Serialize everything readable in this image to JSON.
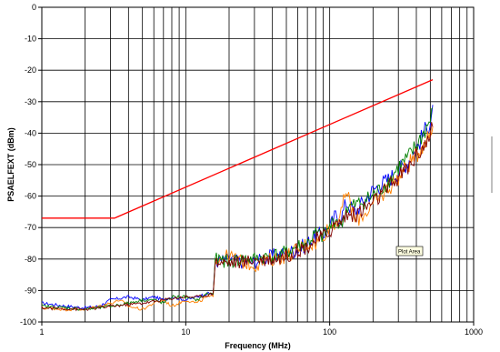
{
  "chart_data": {
    "type": "line",
    "xlabel": "Frequency (MHz)",
    "ylabel": "PSAELFEXT (dBm)",
    "xscale": "log",
    "xlim": [
      1,
      1000
    ],
    "ylim": [
      -100,
      0
    ],
    "x_tick_labels": [
      "1",
      "10",
      "100",
      "1000"
    ],
    "y_tick_labels": [
      "0",
      "-10",
      "-20",
      "-30",
      "-40",
      "-50",
      "-60",
      "-70",
      "-80",
      "-90",
      "-100"
    ],
    "grid": true,
    "legend": "none",
    "tooltip": "Plot Area",
    "limit_line": {
      "color": "#ff0000",
      "x": [
        1,
        3.2,
        520
      ],
      "y": [
        -67,
        -67,
        -23
      ]
    },
    "series": [
      {
        "color": "#0000ff",
        "x": [
          1,
          1.5,
          2,
          2.5,
          3,
          4,
          5,
          6,
          7,
          8,
          10,
          12,
          14,
          15.5,
          16,
          20,
          25,
          30,
          40,
          50,
          60,
          70,
          80,
          90,
          100,
          110,
          120,
          130,
          150,
          200,
          250,
          300,
          350,
          400,
          450,
          500,
          520
        ],
        "y": [
          -94,
          -95,
          -95.5,
          -95,
          -93,
          -92,
          -93,
          -92,
          -93,
          -92,
          -93,
          -92,
          -91,
          -91,
          -81,
          -80,
          -81,
          -81,
          -79,
          -78,
          -77,
          -75,
          -73,
          -72,
          -70,
          -66,
          -67,
          -62,
          -65,
          -58,
          -55,
          -52,
          -49,
          -45,
          -40,
          -36,
          -31
        ]
      },
      {
        "color": "#ff8000",
        "x": [
          1,
          1.5,
          2,
          2.5,
          3,
          3.5,
          4,
          5,
          6,
          7,
          8,
          10,
          12,
          14,
          15.5,
          16,
          20,
          25,
          30,
          40,
          50,
          60,
          70,
          80,
          90,
          100,
          110,
          120,
          130,
          150,
          200,
          250,
          300,
          350,
          400,
          450,
          500,
          520
        ],
        "y": [
          -95.5,
          -96,
          -96,
          -95,
          -94,
          -93,
          -95,
          -96,
          -94,
          -93,
          -95,
          -93,
          -94,
          -92,
          -92,
          -80,
          -79,
          -81,
          -82,
          -80,
          -79,
          -77,
          -75,
          -75,
          -72,
          -70,
          -68,
          -66,
          -58,
          -68,
          -63,
          -58,
          -54,
          -50,
          -47,
          -43,
          -40,
          -38
        ]
      },
      {
        "color": "#008000",
        "x": [
          1,
          1.5,
          2,
          2.5,
          3,
          4,
          5,
          6,
          7,
          8,
          10,
          12,
          14,
          15.5,
          16,
          20,
          25,
          30,
          40,
          50,
          60,
          70,
          80,
          90,
          100,
          110,
          120,
          130,
          150,
          200,
          250,
          300,
          350,
          400,
          450,
          500,
          520
        ],
        "y": [
          -95,
          -95.5,
          -96,
          -95.5,
          -95,
          -94,
          -93,
          -93,
          -94,
          -92,
          -92,
          -93,
          -91,
          -91,
          -80,
          -81,
          -80,
          -80,
          -79,
          -78,
          -76,
          -75,
          -72,
          -73,
          -70,
          -67,
          -70,
          -64,
          -63,
          -60,
          -56,
          -51,
          -48,
          -44,
          -40,
          -36,
          -32
        ]
      },
      {
        "color": "#800000",
        "x": [
          1,
          1.5,
          2,
          2.5,
          3,
          4,
          5,
          6,
          7,
          8,
          10,
          12,
          14,
          15.5,
          16,
          20,
          25,
          30,
          40,
          50,
          60,
          70,
          80,
          90,
          100,
          110,
          120,
          130,
          150,
          200,
          250,
          300,
          350,
          400,
          450,
          500,
          520
        ],
        "y": [
          -95.5,
          -95.8,
          -96,
          -95.5,
          -95,
          -94.5,
          -94,
          -93.5,
          -93,
          -92.5,
          -92,
          -92,
          -91.5,
          -91,
          -81,
          -81,
          -81,
          -80,
          -80,
          -79,
          -77,
          -76,
          -74,
          -73,
          -71,
          -69,
          -68,
          -66,
          -66,
          -62,
          -58,
          -54,
          -51,
          -47,
          -44,
          -41,
          -38
        ]
      }
    ]
  }
}
